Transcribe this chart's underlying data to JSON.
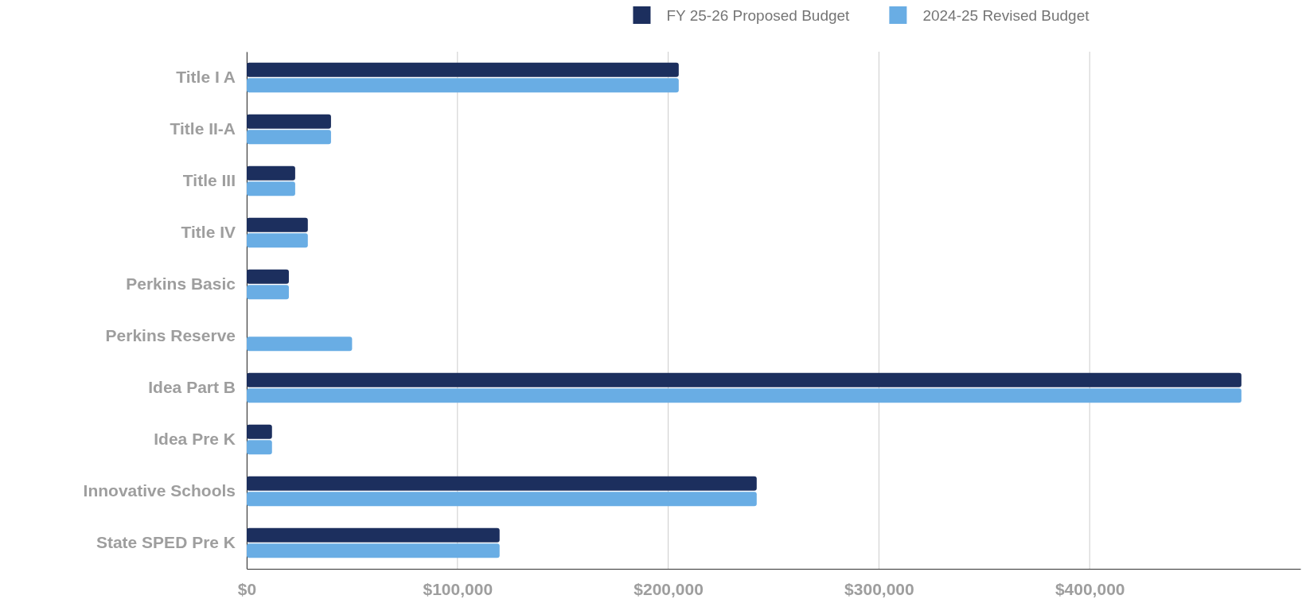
{
  "chart_data": {
    "type": "bar",
    "orientation": "horizontal",
    "categories": [
      "Title I A",
      "Title II-A",
      "Title III",
      "Title IV",
      "Perkins Basic",
      "Perkins Reserve",
      "Idea Part B",
      "Idea Pre K",
      "Innovative Schools",
      "State SPED Pre K"
    ],
    "series": [
      {
        "name": "FY 25-26 Proposed Budget",
        "color": "#1c2f5e",
        "values": [
          205000,
          40000,
          23000,
          29000,
          20000,
          0,
          472000,
          12000,
          242000,
          120000
        ]
      },
      {
        "name": "2024-25 Revised Budget",
        "color": "#69ade4",
        "values": [
          205000,
          40000,
          23000,
          29000,
          20000,
          50000,
          472000,
          12000,
          242000,
          120000
        ]
      }
    ],
    "xlim": [
      0,
      500000
    ],
    "xticks": [
      {
        "value": 0,
        "label": "$0"
      },
      {
        "value": 100000,
        "label": "$100,000"
      },
      {
        "value": 200000,
        "label": "$200,000"
      },
      {
        "value": 300000,
        "label": "$300,000"
      },
      {
        "value": 400000,
        "label": "$400,000"
      }
    ],
    "grid": "x",
    "legend": "top"
  }
}
